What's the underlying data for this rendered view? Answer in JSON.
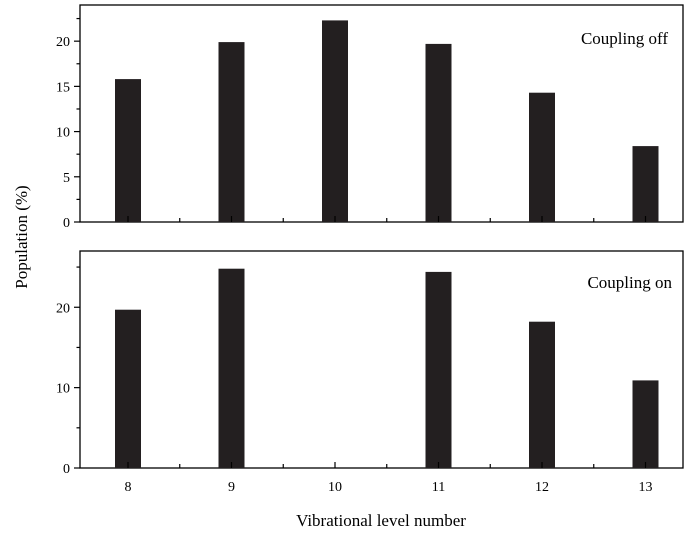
{
  "chart_data": [
    {
      "type": "bar",
      "label": "Coupling off",
      "categories": [
        "8",
        "9",
        "10",
        "11",
        "12",
        "13"
      ],
      "values": [
        15.8,
        19.9,
        22.3,
        19.7,
        14.3,
        8.4
      ],
      "ylim": [
        0,
        24
      ],
      "yticks": [
        0,
        5,
        10,
        15,
        20
      ],
      "ytick_labels": [
        "0",
        "5",
        "10",
        "15",
        "20"
      ],
      "xlabel": "",
      "ylabel": "",
      "grid": false,
      "bar_color": "#231f20"
    },
    {
      "type": "bar",
      "label": "Coupling on",
      "categories": [
        "8",
        "9",
        "10",
        "11",
        "12",
        "13"
      ],
      "values": [
        19.7,
        24.8,
        null,
        24.4,
        18.2,
        10.9
      ],
      "ylim": [
        0,
        27
      ],
      "yticks": [
        0,
        10,
        20
      ],
      "ytick_labels": [
        "0",
        "10",
        "20"
      ],
      "xlabel": "Vibrational level number",
      "ylabel": "",
      "grid": false,
      "bar_color": "#231f20"
    }
  ],
  "shared_ylabel": "Population (%)",
  "xtick_labels": [
    "8",
    "9",
    "10",
    "11",
    "12",
    "13"
  ]
}
